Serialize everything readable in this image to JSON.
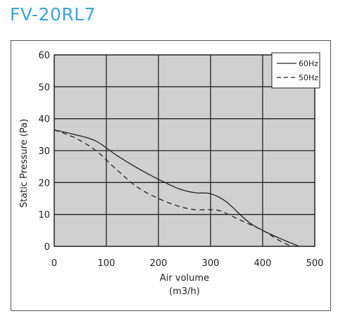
{
  "title": "FV-20RL7",
  "chart_data": {
    "type": "line",
    "title": "FV-20RL7",
    "xlabel_lines": [
      "Air volume",
      "(m3/h)"
    ],
    "ylabel": "Static Pressure (Pa)",
    "xlim": [
      0,
      500
    ],
    "ylim": [
      0,
      60
    ],
    "xticks": [
      0,
      100,
      200,
      300,
      400,
      500
    ],
    "yticks": [
      0,
      10,
      20,
      30,
      40,
      50,
      60
    ],
    "grid": true,
    "legend_position": "top-right",
    "series": [
      {
        "name": "60Hz",
        "style": "solid",
        "color": "#222222",
        "x": [
          0,
          40,
          80,
          120,
          160,
          200,
          240,
          270,
          300,
          330,
          370,
          400,
          440,
          470
        ],
        "y": [
          36.5,
          35,
          33,
          28.5,
          24.5,
          21,
          18,
          16.8,
          16.5,
          14,
          8,
          5,
          2,
          0
        ]
      },
      {
        "name": "50Hz",
        "style": "dashed",
        "color": "#222222",
        "x": [
          0,
          40,
          80,
          120,
          160,
          200,
          240,
          270,
          300,
          320,
          360,
          400,
          430,
          455
        ],
        "y": [
          36.5,
          34,
          30,
          24,
          18.5,
          15,
          12.5,
          11.5,
          11.5,
          11,
          8,
          5,
          2,
          0
        ]
      }
    ]
  }
}
